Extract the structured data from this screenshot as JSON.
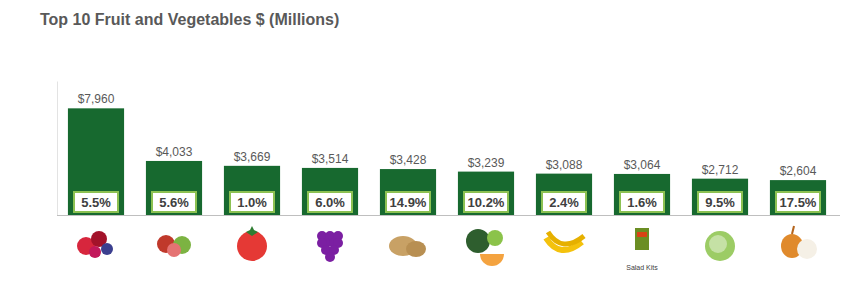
{
  "chart_data": {
    "type": "bar",
    "title": "Top 10 Fruit and Vegetables $ (Millions)",
    "categories": [
      null,
      null,
      null,
      null,
      null,
      null,
      null,
      "Salad Kits",
      null,
      null
    ],
    "values": [
      7960,
      4033,
      3669,
      3514,
      3428,
      3239,
      3088,
      3064,
      2712,
      2604
    ],
    "value_labels": [
      "$7,960",
      "$4,033",
      "$3,669",
      "$3,514",
      "$3,428",
      "$3,239",
      "$3,088",
      "$3,064",
      "$2,712",
      "$2,604"
    ],
    "change": [
      5.5,
      5.6,
      1.0,
      6.0,
      14.9,
      10.2,
      2.4,
      1.6,
      9.5,
      17.5
    ],
    "change_labels": [
      "5.5%",
      "5.6%",
      "1.0%",
      "6.0%",
      "14.9%",
      "10.2%",
      "2.4%",
      "1.6%",
      "9.5%",
      "17.5%"
    ],
    "color": "#17692f",
    "ylim": [
      0,
      10000
    ],
    "yticks": [
      0
    ],
    "data_labels": true,
    "tick_labels": "x"
  }
}
